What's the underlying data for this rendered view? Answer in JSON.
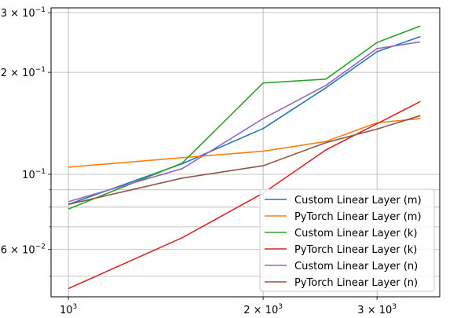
{
  "chart_data": {
    "type": "line",
    "x_scale": "log",
    "y_scale": "log",
    "xlim": [
      940,
      3750
    ],
    "ylim": [
      0.0435,
      0.31
    ],
    "grid": true,
    "legend_position": "lower-right",
    "x_ticks": [
      {
        "value": 1000,
        "base": "10",
        "exp": "3"
      },
      {
        "value": 2000,
        "base": "2 × 10",
        "exp": "3"
      },
      {
        "value": 3000,
        "base": "3 × 10",
        "exp": "3"
      }
    ],
    "x_minor_ticks": [
      1000,
      2000,
      3000
    ],
    "y_ticks": [
      {
        "value": 0.06,
        "base": "6 × 10",
        "exp": "−2"
      },
      {
        "value": 0.1,
        "base": "10",
        "exp": "−1"
      },
      {
        "value": 0.2,
        "base": "2 × 10",
        "exp": "−1"
      },
      {
        "value": 0.3,
        "base": "3 × 10",
        "exp": "−1"
      }
    ],
    "y_minor_ticks": [
      0.05,
      0.07,
      0.08,
      0.09
    ],
    "x": [
      1000,
      1500,
      2000,
      2500,
      3000,
      3500
    ],
    "series": [
      {
        "name": "Custom Linear Layer (m)",
        "color": "#1f77b4",
        "values": [
          0.0815,
          0.1075,
          0.1365,
          0.18,
          0.23,
          0.255
        ]
      },
      {
        "name": "PyTorch Linear Layer (m)",
        "color": "#ff7f0e",
        "values": [
          0.105,
          0.112,
          0.117,
          0.125,
          0.142,
          0.146
        ]
      },
      {
        "name": "Custom Linear Layer (k)",
        "color": "#2ca02c",
        "values": [
          0.079,
          0.108,
          0.186,
          0.191,
          0.245,
          0.274
        ]
      },
      {
        "name": "PyTorch Linear Layer (k)",
        "color": "#d62728",
        "values": [
          0.046,
          0.065,
          0.088,
          0.118,
          0.141,
          0.164
        ]
      },
      {
        "name": "Custom Linear Layer (n)",
        "color": "#9467bd",
        "values": [
          0.083,
          0.104,
          0.146,
          0.183,
          0.235,
          0.246
        ]
      },
      {
        "name": "PyTorch Linear Layer (n)",
        "color": "#8c564b",
        "values": [
          0.0815,
          0.0975,
          0.106,
          0.124,
          0.136,
          0.149
        ]
      }
    ]
  }
}
